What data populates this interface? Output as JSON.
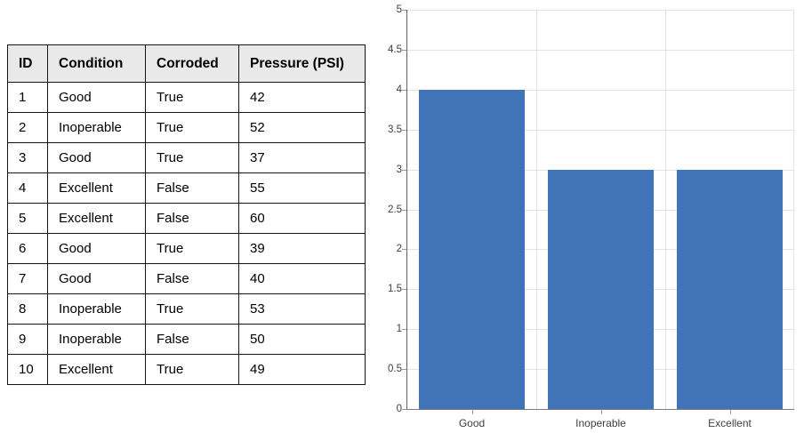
{
  "table": {
    "columns": [
      "ID",
      "Condition",
      "Corroded",
      "Pressure (PSI)"
    ],
    "rows": [
      [
        "1",
        "Good",
        "True",
        "42"
      ],
      [
        "2",
        "Inoperable",
        "True",
        "52"
      ],
      [
        "3",
        "Good",
        "True",
        "37"
      ],
      [
        "4",
        "Excellent",
        "False",
        "55"
      ],
      [
        "5",
        "Excellent",
        "False",
        "60"
      ],
      [
        "6",
        "Good",
        "True",
        "39"
      ],
      [
        "7",
        "Good",
        "False",
        "40"
      ],
      [
        "8",
        "Inoperable",
        "True",
        "53"
      ],
      [
        "9",
        "Inoperable",
        "False",
        "50"
      ],
      [
        "10",
        "Excellent",
        "True",
        "49"
      ]
    ]
  },
  "chart_data": {
    "type": "bar",
    "categories": [
      "Good",
      "Inoperable",
      "Excellent"
    ],
    "values": [
      4,
      3,
      3
    ],
    "title": "",
    "xlabel": "",
    "ylabel": "",
    "ylim": [
      0,
      5
    ],
    "ytick_step": 0.5,
    "ytick_labels": [
      "0",
      "0.5",
      "1",
      "1.5",
      "2",
      "2.5",
      "3",
      "3.5",
      "4",
      "4.5",
      "5"
    ],
    "grid": true,
    "legend": false,
    "bar_color": "#4173b8",
    "grid_color": "#e3e3e3",
    "axis_color": "#606060",
    "tick_color": "#9a9a9a",
    "label_color": "#3f3f3f"
  }
}
